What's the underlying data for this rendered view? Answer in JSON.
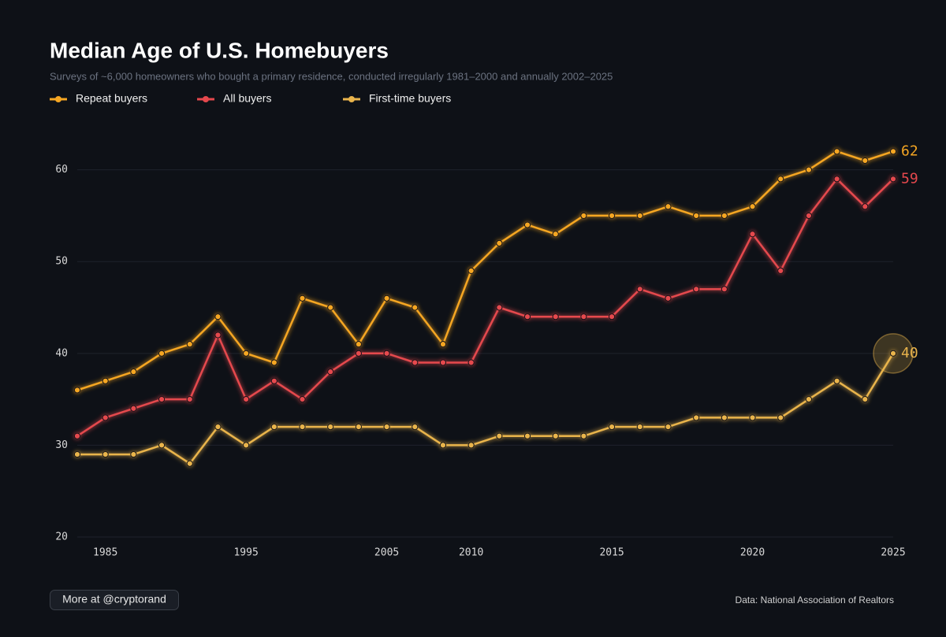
{
  "chart_data": {
    "type": "line",
    "title": "Median Age of U.S. Homebuyers",
    "subtitle": "Surveys of ~6,000 homeowners who bought a primary residence, conducted irregularly 1981–2000 and annually 2002–2025",
    "categories": [
      null,
      "1985",
      null,
      null,
      null,
      null,
      "1995",
      null,
      null,
      null,
      null,
      "2005",
      null,
      null,
      "2010",
      null,
      null,
      null,
      null,
      "2015",
      null,
      null,
      null,
      null,
      "2020",
      null,
      null,
      null,
      null,
      "2025"
    ],
    "series": [
      {
        "name": "Repeat buyers",
        "color": "#f5a623",
        "values": [
          36,
          37,
          38,
          40,
          41,
          44,
          40,
          39,
          46,
          45,
          41,
          46,
          45,
          41,
          49,
          52,
          54,
          53,
          55,
          55,
          55,
          56,
          55,
          55,
          56,
          59,
          60,
          62,
          61,
          62
        ]
      },
      {
        "name": "All buyers",
        "color": "#e5484d",
        "values": [
          31,
          33,
          34,
          35,
          35,
          42,
          35,
          37,
          35,
          38,
          40,
          40,
          39,
          39,
          39,
          45,
          44,
          44,
          44,
          44,
          47,
          46,
          47,
          47,
          53,
          49,
          55,
          59,
          56,
          59
        ]
      },
      {
        "name": "First-time buyers",
        "color": "#e9b44c",
        "values": [
          29,
          29,
          29,
          30,
          28,
          32,
          30,
          32,
          32,
          32,
          32,
          32,
          32,
          30,
          30,
          31,
          31,
          31,
          31,
          32,
          32,
          32,
          33,
          33,
          33,
          33,
          35,
          37,
          35,
          40
        ]
      }
    ],
    "ylim": [
      20,
      64
    ],
    "yticks": [
      20,
      30,
      40,
      50,
      60
    ],
    "grid": true,
    "legend": "top",
    "footer_link": "More at @cryptorand",
    "source": "Data: National Association of Realtors"
  }
}
